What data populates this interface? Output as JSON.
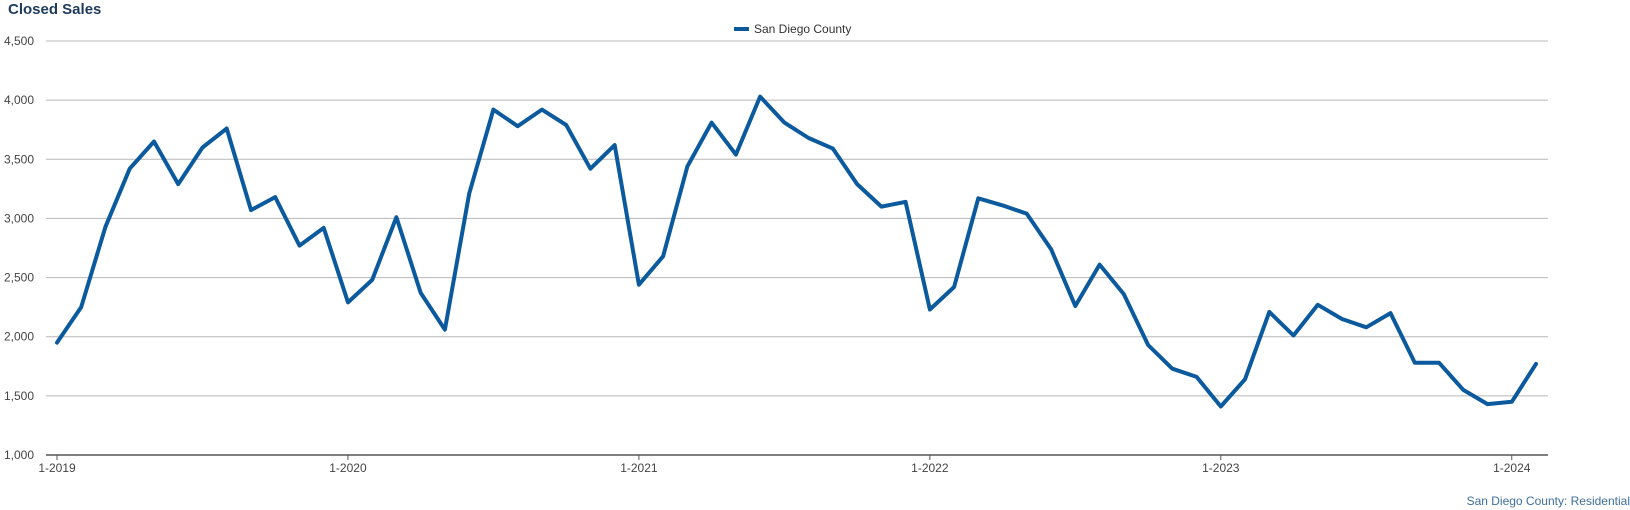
{
  "title": "Closed Sales",
  "footer": "San Diego County: Residential",
  "chart_data": {
    "type": "line",
    "title": "Closed Sales",
    "xlabel": "",
    "ylabel": "",
    "ylim": [
      1000,
      4500
    ],
    "y_ticks": [
      1000,
      1500,
      2000,
      2500,
      3000,
      3500,
      4000,
      4500
    ],
    "y_tick_labels": [
      "1,000",
      "1,500",
      "2,000",
      "2,500",
      "3,000",
      "3,500",
      "4,000",
      "4,500"
    ],
    "x_tick_labels": [
      "1-2019",
      "1-2020",
      "1-2021",
      "1-2022",
      "1-2023",
      "1-2024"
    ],
    "grid": true,
    "legend": "top-center",
    "x_start": "1-2019",
    "x_end": "2-2024",
    "series": [
      {
        "name": "San Diego County",
        "color": "#0c5a9e",
        "values": [
          1950,
          2250,
          2930,
          3420,
          3650,
          3290,
          3600,
          3760,
          3070,
          3180,
          2770,
          2920,
          2290,
          2480,
          3010,
          2370,
          2060,
          3210,
          3920,
          3780,
          3920,
          3790,
          3420,
          3620,
          2440,
          2680,
          3440,
          3810,
          3540,
          4030,
          3810,
          3680,
          3590,
          3290,
          3100,
          3140,
          2230,
          2420,
          3170,
          3110,
          3040,
          2740,
          2260,
          2610,
          2360,
          1930,
          1730,
          1660,
          1410,
          1640,
          2210,
          2010,
          2270,
          2150,
          2080,
          2200,
          1780,
          1780,
          1550,
          1430,
          1450,
          1770
        ]
      }
    ]
  }
}
